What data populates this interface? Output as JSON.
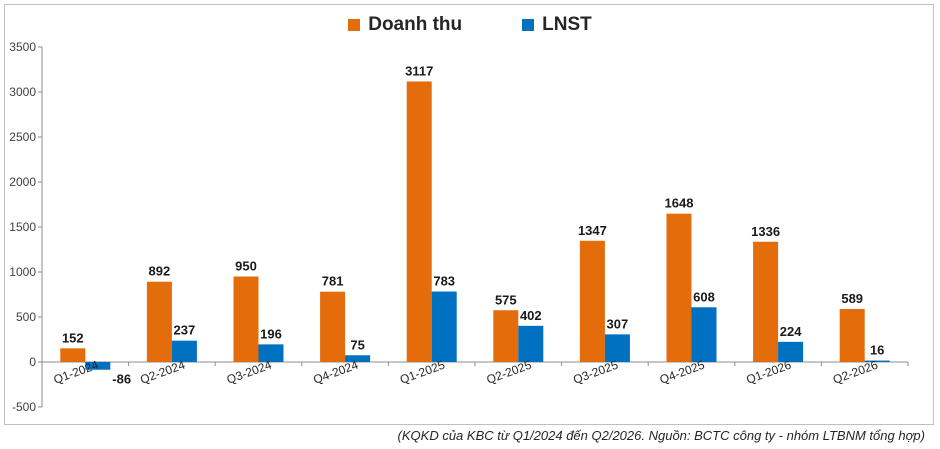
{
  "chart_data": {
    "type": "bar",
    "categories": [
      "Q1-2024",
      "Q2-2024",
      "Q3-2024",
      "Q4-2024",
      "Q1-2025",
      "Q2-2025",
      "Q3-2025",
      "Q4-2025",
      "Q1-2026",
      "Q2-2026"
    ],
    "series": [
      {
        "name": "Doanh thu",
        "color": "#E46C0A",
        "values": [
          152,
          892,
          950,
          781,
          3117,
          575,
          1347,
          1648,
          1336,
          589
        ]
      },
      {
        "name": "LNST",
        "color": "#0070C0",
        "values": [
          -86,
          237,
          196,
          75,
          783,
          402,
          307,
          608,
          224,
          16
        ]
      }
    ],
    "ylim": [
      -500,
      3500
    ],
    "yticks": [
      -500,
      0,
      500,
      1000,
      1500,
      2000,
      2500,
      3000,
      3500
    ],
    "grid": false,
    "legend_position": "top-center"
  },
  "caption": "(KQKD của KBC từ Q1/2024 đến Q2/2026. Nguồn: BCTC công ty - nhóm LTBNM tổng hợp)"
}
